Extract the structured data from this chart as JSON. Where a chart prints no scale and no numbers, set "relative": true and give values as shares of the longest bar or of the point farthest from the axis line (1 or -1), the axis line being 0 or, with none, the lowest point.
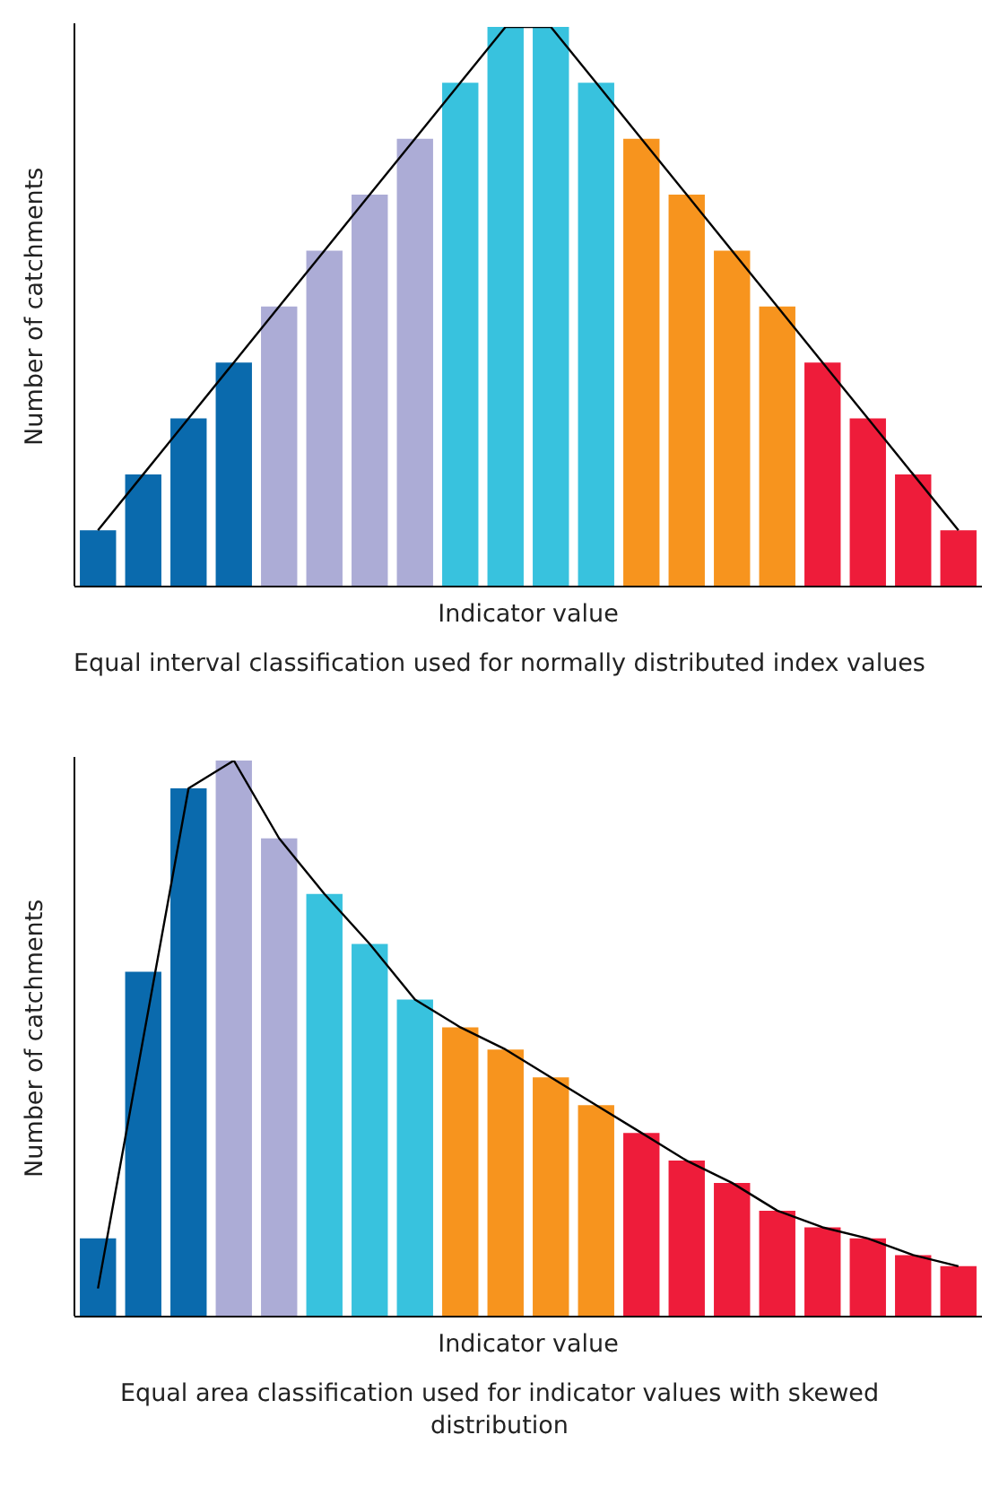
{
  "chart_data": [
    {
      "type": "bar",
      "relative": true,
      "xlabel": "Indicator value",
      "ylabel": "Number of catchments",
      "annotations": [
        "Equal interval classification used for normally distributed index values"
      ],
      "categories": [
        null,
        null,
        null,
        null,
        null,
        null,
        null,
        null,
        null,
        null,
        null,
        null,
        null,
        null,
        null,
        null,
        null,
        null,
        null,
        null
      ],
      "colors": [
        "#0a6aad",
        "#0a6aad",
        "#0a6aad",
        "#0a6aad",
        "#acacd6",
        "#acacd6",
        "#acacd6",
        "#acacd6",
        "#38c2de",
        "#38c2de",
        "#38c2de",
        "#38c2de",
        "#f7941e",
        "#f7941e",
        "#f7941e",
        "#f7941e",
        "#ee1c3a",
        "#ee1c3a",
        "#ee1c3a",
        "#ee1c3a"
      ],
      "values": [
        0.1,
        0.2,
        0.3,
        0.4,
        0.5,
        0.6,
        0.7,
        0.8,
        0.9,
        1,
        1,
        0.9,
        0.8,
        0.7,
        0.6,
        0.5,
        0.4,
        0.3,
        0.2,
        0.1
      ]
    },
    {
      "type": "line",
      "relative": true,
      "color": "#000000",
      "categories": [
        null,
        null,
        null,
        null,
        null,
        null,
        null,
        null,
        null,
        null,
        null,
        null,
        null,
        null,
        null,
        null,
        null,
        null,
        null,
        null
      ],
      "values": [
        0.1,
        0.2,
        0.3,
        0.4,
        0.5,
        0.6,
        0.7,
        0.8,
        0.9,
        1,
        1,
        0.9,
        0.8,
        0.7,
        0.6,
        0.5,
        0.4,
        0.3,
        0.2,
        0.1
      ]
    },
    {
      "type": "bar",
      "relative": true,
      "xlabel": "Indicator value",
      "ylabel": "Number of catchments",
      "annotations": [
        "Equal area classification used for indicator values with skewed distribution"
      ],
      "categories": [
        null,
        null,
        null,
        null,
        null,
        null,
        null,
        null,
        null,
        null,
        null,
        null,
        null,
        null,
        null,
        null,
        null,
        null,
        null,
        null
      ],
      "colors": [
        "#0a6aad",
        "#0a6aad",
        "#0a6aad",
        "#acacd6",
        "#acacd6",
        "#38c2de",
        "#38c2de",
        "#38c2de",
        "#f7941e",
        "#f7941e",
        "#f7941e",
        "#f7941e",
        "#ee1c3a",
        "#ee1c3a",
        "#ee1c3a",
        "#ee1c3a",
        "#ee1c3a",
        "#ee1c3a",
        "#ee1c3a",
        "#ee1c3a"
      ],
      "values": [
        0.14,
        0.62,
        0.95,
        1,
        0.86,
        0.76,
        0.67,
        0.57,
        0.52,
        0.48,
        0.43,
        0.38,
        0.33,
        0.28,
        0.24,
        0.19,
        0.16,
        0.14,
        0.11,
        0.09
      ]
    },
    {
      "type": "line",
      "relative": true,
      "color": "#000000",
      "categories": [
        null,
        null,
        null,
        null,
        null,
        null,
        null,
        null,
        null,
        null,
        null,
        null,
        null,
        null,
        null,
        null,
        null,
        null,
        null,
        null
      ],
      "values": [
        0.05,
        null,
        0.95,
        1,
        0.86,
        0.76,
        0.67,
        0.57,
        0.52,
        0.48,
        0.43,
        0.38,
        0.33,
        0.28,
        0.24,
        0.19,
        0.16,
        0.14,
        0.11,
        0.09
      ]
    }
  ]
}
